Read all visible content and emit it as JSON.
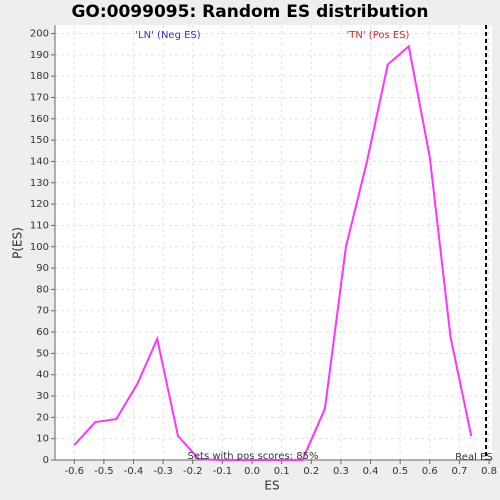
{
  "chart_data": {
    "type": "line",
    "title": "GO:0099095: Random ES distribution",
    "x_label": "ES",
    "y_label": "P(ES)",
    "x": [
      -0.6,
      -0.529,
      -0.458,
      -0.387,
      -0.32,
      -0.25,
      -0.18,
      -0.11,
      -0.04,
      0.03,
      0.1,
      0.17,
      0.246,
      0.317,
      0.388,
      0.458,
      0.529,
      0.6,
      0.67,
      0.74
    ],
    "series": [
      {
        "name": "P(ES)",
        "color": "#ff33ff",
        "values": [
          7,
          17.8,
          19.2,
          35.7,
          56.8,
          11.3,
          0.5,
          0,
          0,
          0,
          0,
          0,
          24,
          100,
          140,
          185.4,
          194,
          142,
          57.7,
          11.3
        ]
      }
    ],
    "xlim": [
      -0.665,
      0.81
    ],
    "ylim": [
      0,
      204
    ],
    "xticks": [
      -0.6,
      -0.5,
      -0.4,
      -0.3,
      -0.2,
      -0.1,
      {
        "value": 0,
        "label": "0.0"
      },
      0.1,
      0.2,
      0.3,
      0.4,
      0.5,
      0.6,
      0.7,
      0.8
    ],
    "yticks": [
      0,
      10,
      20,
      30,
      40,
      50,
      60,
      70,
      80,
      90,
      100,
      110,
      120,
      130,
      140,
      150,
      160,
      170,
      180,
      190,
      200
    ],
    "grid": true,
    "real_es": 0.79,
    "annotations": [
      {
        "text": "'LN' (Neg ES)",
        "color": "#3333cc"
      },
      {
        "text": "'TN' (Pos ES)",
        "color": "#dd2222"
      },
      {
        "text": "Sets with pos scores: 85%",
        "color": "#333333"
      },
      {
        "text": "Real ES",
        "color": "#333333"
      }
    ]
  }
}
